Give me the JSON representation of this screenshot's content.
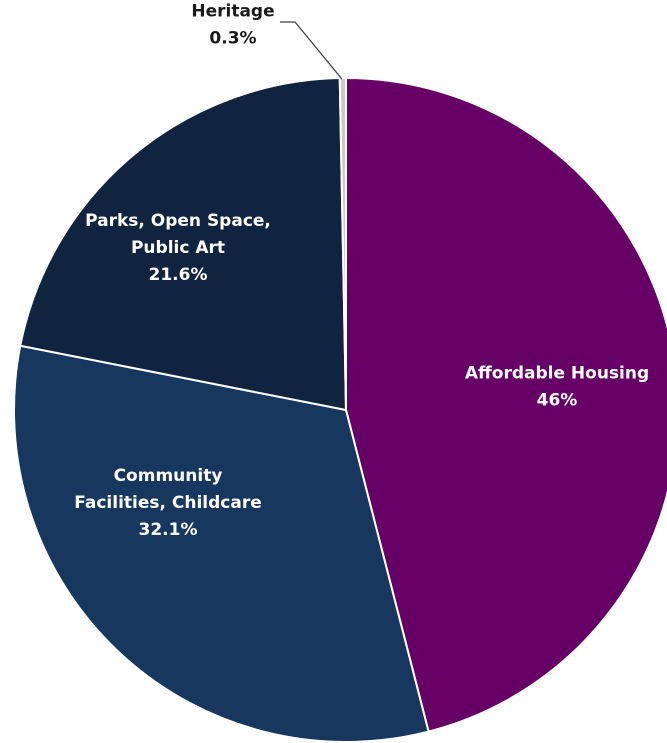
{
  "chart_data": {
    "type": "pie",
    "title": "",
    "start_angle_deg": 0,
    "direction": "clockwise",
    "slices": [
      {
        "label_lines": [
          "Affordable Housing"
        ],
        "value_label": "46%",
        "value": 46.0,
        "color": "#660066"
      },
      {
        "label_lines": [
          "Community",
          "Facilities, Childcare"
        ],
        "value_label": "32.1%",
        "value": 32.1,
        "color": "#17375e"
      },
      {
        "label_lines": [
          "Parks, Open Space,",
          "Public Art"
        ],
        "value_label": "21.6%",
        "value": 21.6,
        "color": "#10243f"
      },
      {
        "label_lines": [
          "Heritage"
        ],
        "value_label": "0.3%",
        "value": 0.3,
        "color": "#c9c9c9"
      }
    ],
    "legend": "none"
  }
}
